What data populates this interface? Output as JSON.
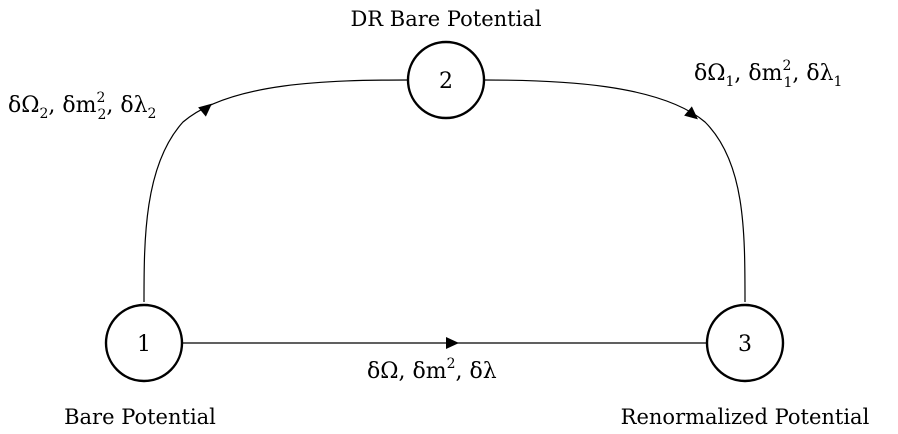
{
  "nodes": [
    {
      "id": "1",
      "label": "1",
      "caption": "Bare Potential"
    },
    {
      "id": "2",
      "label": "2",
      "caption": "DR Bare Potential"
    },
    {
      "id": "3",
      "label": "3",
      "caption": "Renormalized Potential"
    }
  ],
  "edges": {
    "left_path": {
      "from": "1",
      "to": "2",
      "parts": [
        "δΩ",
        "2",
        ", δm",
        "2",
        "2",
        ", δλ",
        "2"
      ]
    },
    "right_path": {
      "from": "2",
      "to": "3",
      "parts": [
        "δΩ",
        "1",
        ", δm",
        "2",
        "1",
        ", δλ",
        "1"
      ]
    },
    "bottom_path": {
      "from": "1",
      "to": "3",
      "parts": [
        "δΩ",
        ", δm",
        "2",
        ", δλ"
      ]
    }
  }
}
